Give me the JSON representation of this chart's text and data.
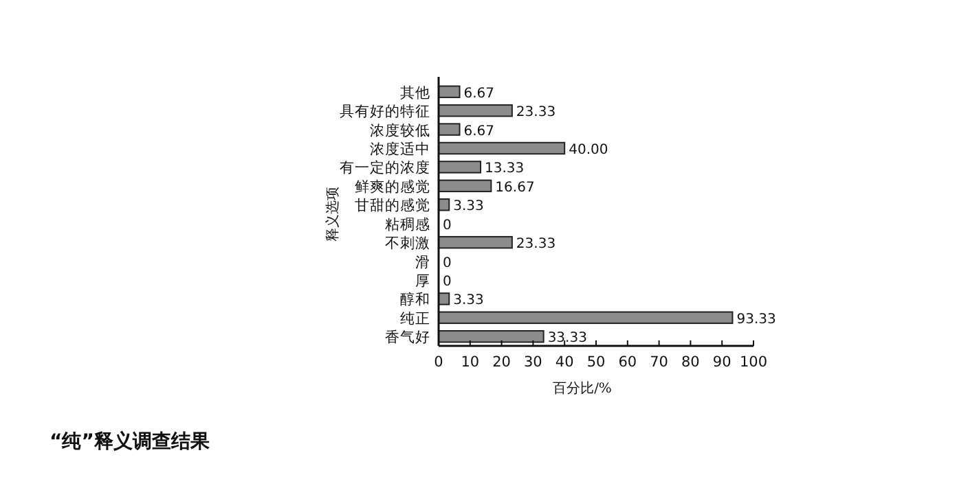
{
  "chart_data": {
    "type": "bar",
    "orientation": "horizontal",
    "xlabel": "百分比/%",
    "ylabel": "释义选项",
    "categories": [
      "其他",
      "具有好的特征",
      "浓度较低",
      "浓度适中",
      "有一定的浓度",
      "鲜爽的感觉",
      "甘甜的感觉",
      "粘稠感",
      "不刺激",
      "滑",
      "厚",
      "醇和",
      "纯正",
      "香气好"
    ],
    "values": [
      6.67,
      23.33,
      6.67,
      40,
      13.33,
      16.67,
      3.33,
      0,
      23.33,
      0,
      0,
      3.33,
      93.33,
      33.33
    ],
    "value_labels": [
      "6.67",
      "23.33",
      "6.67",
      "40.00",
      "13.33",
      "16.67",
      "3.33",
      "0",
      "23.33",
      "0",
      "0",
      "3.33",
      "93.33",
      "33.33"
    ],
    "color": "#8c8c8c",
    "xlim": [
      0,
      100
    ],
    "xticks": [
      0,
      10,
      20,
      30,
      40,
      50,
      60,
      70,
      80,
      90,
      100
    ],
    "annotations": [
      "“纯”释义调查结果"
    ]
  }
}
